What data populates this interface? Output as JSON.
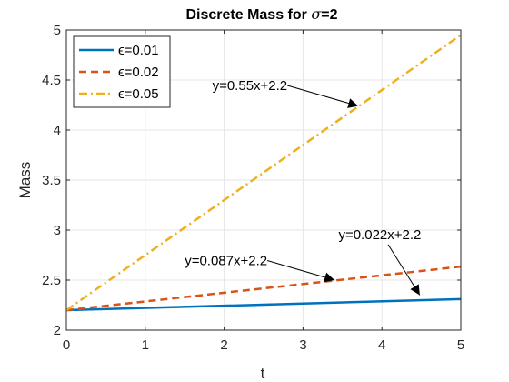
{
  "chart_data": {
    "type": "line",
    "title_prefix": "Discrete Mass for ",
    "title_symbol": "σ",
    "title_suffix": "=2",
    "xlabel": "t",
    "ylabel": "Mass",
    "xlim": [
      0,
      5
    ],
    "ylim": [
      2,
      5
    ],
    "xticks": [
      0,
      1,
      2,
      3,
      4,
      5
    ],
    "yticks": [
      2,
      2.5,
      3,
      3.5,
      4,
      4.5,
      5
    ],
    "yticklabels": [
      "2",
      "2.5",
      "3",
      "3.5",
      "4",
      "4.5",
      "5"
    ],
    "grid": true,
    "legend_location": "top-left",
    "series": [
      {
        "name": "ϵ=0.01",
        "color": "#0072BD",
        "style": "solid",
        "x": [
          0,
          5
        ],
        "y": [
          2.2,
          2.31
        ]
      },
      {
        "name": "ϵ=0.02",
        "color": "#D95319",
        "style": "dashed",
        "x": [
          0,
          5
        ],
        "y": [
          2.2,
          2.635
        ]
      },
      {
        "name": "ϵ=0.05",
        "color": "#EDB120",
        "style": "dashdot",
        "x": [
          0,
          5
        ],
        "y": [
          2.2,
          4.95
        ]
      }
    ],
    "annotations": [
      {
        "text": "y=0.55x+2.2",
        "label_x": 1.85,
        "label_y": 4.4,
        "target_x": 3.7,
        "target_y": 4.24
      },
      {
        "text": "y=0.087x+2.2",
        "label_x": 1.5,
        "label_y": 2.65,
        "target_x": 3.4,
        "target_y": 2.5
      },
      {
        "text": "y=0.022x+2.2",
        "label_x": 3.45,
        "label_y": 2.91,
        "target_x": 4.48,
        "target_y": 2.35
      }
    ]
  }
}
